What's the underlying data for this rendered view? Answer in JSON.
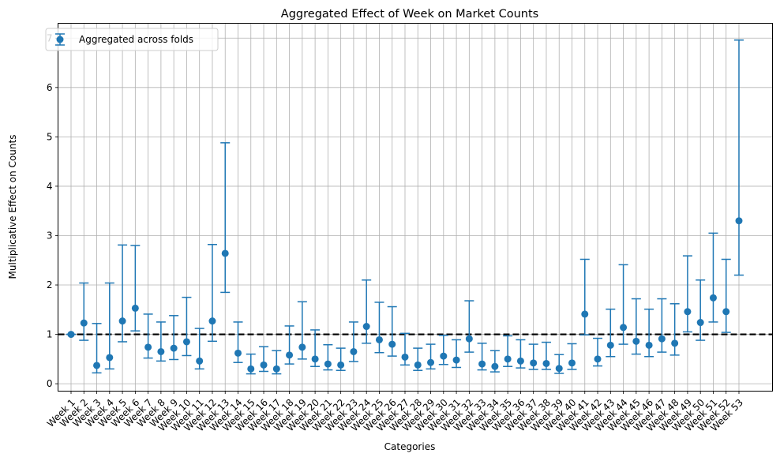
{
  "chart_data": {
    "type": "scatter",
    "title": "Aggregated Effect of Week on Market Counts",
    "xlabel": "Categories",
    "ylabel": "Multiplicative Effect on Counts",
    "ylim": [
      -0.15,
      7.3
    ],
    "yticks": [
      0,
      1,
      2,
      3,
      4,
      5,
      6,
      7
    ],
    "grid": true,
    "legend_position": "top-left",
    "reference_line": {
      "y": 1,
      "style": "dashed",
      "color": "#000000"
    },
    "colors": {
      "series": "#1f77b4",
      "grid": "#b0b0b0"
    },
    "categories": [
      "Week 1",
      "Week 2",
      "Week 3",
      "Week 4",
      "Week 5",
      "Week 6",
      "Week 7",
      "Week 8",
      "Week 9",
      "Week 10",
      "Week 11",
      "Week 12",
      "Week 13",
      "Week 14",
      "Week 15",
      "Week 16",
      "Week 17",
      "Week 18",
      "Week 19",
      "Week 20",
      "Week 21",
      "Week 22",
      "Week 23",
      "Week 24",
      "Week 25",
      "Week 26",
      "Week 27",
      "Week 28",
      "Week 29",
      "Week 30",
      "Week 31",
      "Week 32",
      "Week 33",
      "Week 34",
      "Week 35",
      "Week 36",
      "Week 37",
      "Week 38",
      "Week 39",
      "Week 40",
      "Week 41",
      "Week 42",
      "Week 43",
      "Week 44",
      "Week 45",
      "Week 46",
      "Week 47",
      "Week 48",
      "Week 49",
      "Week 50",
      "Week 51",
      "Week 52",
      "Week 53"
    ],
    "series": [
      {
        "name": "Aggregated across folds",
        "values": [
          1.0,
          1.23,
          0.37,
          0.53,
          1.27,
          1.53,
          0.74,
          0.65,
          0.72,
          0.85,
          0.46,
          1.27,
          2.64,
          0.62,
          0.3,
          0.38,
          0.3,
          0.58,
          0.74,
          0.5,
          0.4,
          0.38,
          0.65,
          1.16,
          0.89,
          0.8,
          0.54,
          0.38,
          0.43,
          0.56,
          0.48,
          0.91,
          0.4,
          0.35,
          0.5,
          0.46,
          0.42,
          0.41,
          0.31,
          0.42,
          1.41,
          0.5,
          0.78,
          1.14,
          0.86,
          0.78,
          0.91,
          0.82,
          1.46,
          1.24,
          1.74,
          1.46,
          3.3
        ],
        "lower": [
          1.0,
          0.88,
          0.22,
          0.3,
          0.85,
          1.07,
          0.52,
          0.46,
          0.49,
          0.57,
          0.3,
          0.86,
          1.85,
          0.43,
          0.2,
          0.25,
          0.2,
          0.4,
          0.5,
          0.35,
          0.28,
          0.27,
          0.45,
          0.82,
          0.63,
          0.56,
          0.38,
          0.27,
          0.3,
          0.39,
          0.33,
          0.64,
          0.28,
          0.24,
          0.35,
          0.32,
          0.29,
          0.29,
          0.21,
          0.29,
          0.99,
          0.36,
          0.55,
          0.8,
          0.6,
          0.55,
          0.64,
          0.58,
          1.05,
          0.88,
          1.25,
          1.04,
          2.2
        ],
        "upper": [
          1.0,
          2.04,
          1.22,
          2.04,
          2.81,
          2.8,
          1.41,
          1.25,
          1.38,
          1.75,
          1.12,
          2.82,
          4.88,
          1.25,
          0.6,
          0.75,
          0.67,
          1.17,
          1.66,
          1.09,
          0.79,
          0.72,
          1.25,
          2.1,
          1.65,
          1.56,
          1.02,
          0.72,
          0.8,
          0.98,
          0.89,
          1.68,
          0.82,
          0.67,
          0.97,
          0.89,
          0.8,
          0.84,
          0.59,
          0.81,
          2.52,
          0.92,
          1.51,
          2.41,
          1.72,
          1.51,
          1.72,
          1.62,
          2.59,
          2.1,
          3.05,
          2.52,
          6.96
        ]
      }
    ]
  }
}
